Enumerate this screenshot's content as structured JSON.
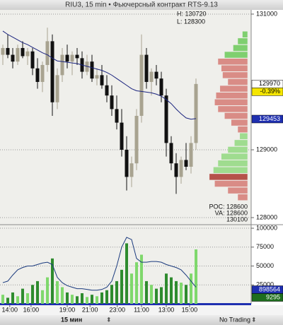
{
  "chart_data": [
    {
      "type": "candlestick",
      "title": "RIU3, 15 min • Фьючерсный контракт RTS-9.13",
      "x": [
        0,
        1,
        2,
        3,
        4,
        5,
        6,
        7,
        8,
        9,
        10,
        11,
        12,
        13,
        14,
        15,
        16,
        17,
        18,
        19,
        20,
        21,
        22,
        23,
        24,
        25,
        26,
        27,
        28,
        29,
        30,
        31,
        32,
        33,
        34,
        35,
        36,
        37,
        38,
        39
      ],
      "open": [
        130400,
        130500,
        130400,
        130300,
        130500,
        130380,
        130450,
        130200,
        130000,
        130250,
        130600,
        129700,
        130100,
        130400,
        130300,
        130400,
        130350,
        130150,
        130300,
        130050,
        130100,
        129950,
        129800,
        129600,
        129400,
        129000,
        128600,
        128800,
        129500,
        130400,
        130000,
        130150,
        130050,
        129800,
        129100,
        128800,
        128600,
        128850,
        128750,
        129100
      ],
      "high": [
        130550,
        130700,
        130500,
        130550,
        130600,
        130500,
        130500,
        130350,
        130300,
        130800,
        130700,
        130200,
        130500,
        130550,
        130450,
        130500,
        130450,
        130400,
        130400,
        130200,
        130250,
        130100,
        129950,
        129800,
        129600,
        129200,
        128900,
        129600,
        130700,
        130500,
        130200,
        130250,
        130150,
        129900,
        129200,
        128950,
        128900,
        129100,
        129200,
        130050
      ],
      "low": [
        130250,
        130350,
        130200,
        130250,
        130350,
        130250,
        130100,
        129900,
        129850,
        130150,
        129500,
        129600,
        130000,
        130200,
        130100,
        130250,
        130050,
        130100,
        130000,
        129950,
        129900,
        129700,
        129500,
        129300,
        128900,
        128400,
        128450,
        128700,
        129400,
        129900,
        129800,
        129950,
        129700,
        128900,
        128700,
        128350,
        128500,
        128700,
        128650,
        129000
      ],
      "close": [
        130500,
        130400,
        130300,
        130500,
        130380,
        130450,
        130200,
        130000,
        130250,
        130600,
        129700,
        130100,
        130400,
        130300,
        130400,
        130350,
        130150,
        130300,
        130050,
        130100,
        129950,
        129800,
        129600,
        129400,
        129000,
        128600,
        128800,
        129500,
        130400,
        130000,
        130150,
        130050,
        129800,
        129100,
        128800,
        128600,
        128850,
        128750,
        129100,
        129970
      ],
      "ma": [
        130750,
        130700,
        130660,
        130620,
        130580,
        130550,
        130510,
        130470,
        130430,
        130400,
        130350,
        130310,
        130300,
        130290,
        130280,
        130270,
        130250,
        130230,
        130210,
        130190,
        130170,
        130140,
        130100,
        130050,
        130000,
        129950,
        129900,
        129870,
        129860,
        129850,
        129840,
        129820,
        129790,
        129740,
        129680,
        129600,
        129530,
        129470,
        129450,
        129460
      ],
      "up_color": "#a8a390",
      "down_color": "#111111",
      "ma_color": "#1a237e",
      "xlim": [
        -0.57,
        50.14
      ],
      "ylim": [
        127896,
        131062
      ],
      "yticks": [
        131000,
        129000,
        128000
      ],
      "xticks": [
        {
          "value": 1.4,
          "label": "14:00"
        },
        {
          "value": 5.7,
          "label": "16:00"
        },
        {
          "value": 13,
          "label": "19:00"
        },
        {
          "value": 17.6,
          "label": "21:00"
        },
        {
          "value": 23.1,
          "label": "23:00"
        },
        {
          "value": 28,
          "label": "11:00"
        },
        {
          "value": 33,
          "label": "13:00"
        },
        {
          "value": 37.7,
          "label": "15:00"
        }
      ],
      "grid": true,
      "high_text": "H: 130720",
      "low_text": "L: 128300",
      "poc_text": "POC: 128600",
      "va_text": "VA: 128600",
      "va_high_text": "130100",
      "profile": {
        "prices": [
          130700,
          130600,
          130500,
          130400,
          130300,
          130200,
          130100,
          130000,
          129900,
          129800,
          129700,
          129600,
          129500,
          129400,
          129300,
          129200,
          129100,
          129000,
          128900,
          128800,
          128700,
          128600,
          128500,
          128400,
          128300
        ],
        "volumes": [
          8,
          15,
          22,
          35,
          45,
          40,
          38,
          30,
          42,
          48,
          50,
          45,
          35,
          25,
          15,
          12,
          20,
          30,
          40,
          45,
          52,
          58,
          50,
          30,
          15
        ],
        "colors": [
          "#7fcf6f",
          "#7fcf6f",
          "#7fcf6f",
          "#7fcf6f",
          "#d98c86",
          "#d98c86",
          "#d98c86",
          "#d98c86",
          "#d98c86",
          "#d98c86",
          "#d98c86",
          "#d98c86",
          "#d98c86",
          "#d98c86",
          "#d98c86",
          "#9fdc8f",
          "#9fdc8f",
          "#9fdc8f",
          "#9fdc8f",
          "#9fdc8f",
          "#9fdc8f",
          "#b5524a",
          "#d98c86",
          "#d98c86",
          "#d98c86"
        ]
      },
      "badges": [
        {
          "value": 129970,
          "label": "129970",
          "bg": "#ffffff",
          "fg": "#000000"
        },
        {
          "value": -0.39,
          "label": "-0.39%",
          "bg": "#f5e600",
          "fg": "#000000"
        },
        {
          "value": 129453,
          "label": "129453",
          "bg": "#1f2fb0",
          "fg": "#ffffff"
        }
      ]
    },
    {
      "type": "bar",
      "values": [
        12000,
        8000,
        15000,
        10000,
        20000,
        14000,
        25000,
        30000,
        18000,
        35000,
        60000,
        30000,
        22000,
        15000,
        12000,
        10000,
        14000,
        9000,
        12000,
        10000,
        15000,
        18000,
        25000,
        30000,
        45000,
        80000,
        40000,
        55000,
        65000,
        30000,
        25000,
        20000,
        22000,
        40000,
        35000,
        30000,
        28000,
        25000,
        40000,
        72000
      ],
      "line": [
        28000,
        30000,
        38000,
        45000,
        48000,
        50000,
        50000,
        52000,
        54000,
        55000,
        52000,
        35000,
        28000,
        24000,
        22000,
        20000,
        20000,
        19000,
        18000,
        18000,
        19000,
        22000,
        30000,
        50000,
        75000,
        88000,
        85000,
        60000,
        55000,
        55000,
        56000,
        56000,
        55000,
        52000,
        50000,
        48000,
        45000,
        38000,
        30000,
        22000
      ],
      "up_color": "#7fd86c",
      "down_color": "#2e8b2e",
      "line_color": "#1a3a7e",
      "ylim": [
        0,
        104700
      ],
      "yticks": [
        25000,
        50000,
        75000,
        100000
      ],
      "grid": true,
      "badges": [
        {
          "value": 898564,
          "label": "898564",
          "bg": "#1f2fb0",
          "fg": "#ffffff"
        },
        {
          "value": 9295,
          "label": "9295",
          "bg": "#1e6e1e",
          "fg": "#ffffff"
        }
      ]
    }
  ],
  "toolbar": {
    "interval": "15 мин",
    "status": "No Trading"
  }
}
